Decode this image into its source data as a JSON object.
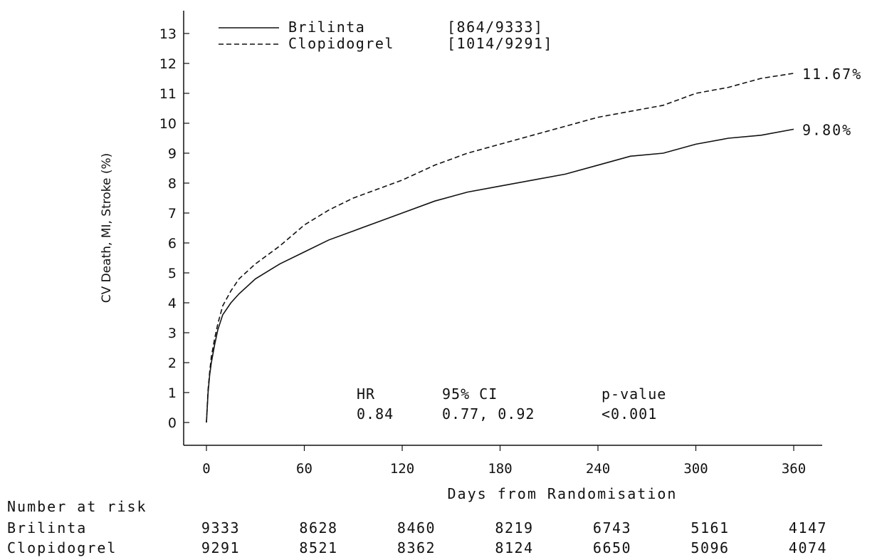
{
  "chart_data": {
    "type": "line",
    "xlabel": "Days from Randomisation",
    "ylabel": "CV Death, MI, Stroke (%)",
    "xlim": [
      0,
      360
    ],
    "ylim": [
      0,
      13
    ],
    "x_ticks": [
      0,
      60,
      120,
      180,
      240,
      300,
      360
    ],
    "y_ticks": [
      0,
      1,
      2,
      3,
      4,
      5,
      6,
      7,
      8,
      9,
      10,
      11,
      12,
      13
    ],
    "grid": false,
    "legend_position": "top-left",
    "series": [
      {
        "name": "Brilinta",
        "legend_counts": "[864/9333]",
        "line_style": "solid",
        "end_label": "9.80%",
        "x": [
          0,
          1,
          2,
          3,
          5,
          7,
          10,
          15,
          20,
          30,
          45,
          60,
          75,
          90,
          105,
          120,
          140,
          160,
          180,
          200,
          220,
          240,
          260,
          280,
          300,
          320,
          340,
          360
        ],
        "y": [
          0,
          1.0,
          1.6,
          2.0,
          2.6,
          3.1,
          3.6,
          4.0,
          4.3,
          4.8,
          5.3,
          5.7,
          6.1,
          6.4,
          6.7,
          7.0,
          7.4,
          7.7,
          7.9,
          8.1,
          8.3,
          8.6,
          8.9,
          9.0,
          9.3,
          9.5,
          9.6,
          9.8
        ]
      },
      {
        "name": "Clopidogrel",
        "legend_counts": "[1014/9291]",
        "line_style": "dashed",
        "end_label": "11.67%",
        "x": [
          0,
          1,
          2,
          3,
          5,
          7,
          10,
          15,
          20,
          30,
          45,
          60,
          75,
          90,
          105,
          120,
          140,
          160,
          180,
          200,
          220,
          240,
          260,
          280,
          300,
          320,
          340,
          360
        ],
        "y": [
          0,
          1.1,
          1.7,
          2.2,
          2.8,
          3.3,
          3.9,
          4.4,
          4.8,
          5.3,
          5.9,
          6.6,
          7.1,
          7.5,
          7.8,
          8.1,
          8.6,
          9.0,
          9.3,
          9.6,
          9.9,
          10.2,
          10.4,
          10.6,
          11.0,
          11.2,
          11.5,
          11.67
        ]
      }
    ],
    "annotation": {
      "headers": [
        "HR",
        "95% CI",
        "p-value"
      ],
      "values": [
        "0.84",
        "0.77, 0.92",
        "<0.001"
      ]
    },
    "risk_table": {
      "title": "Number at risk",
      "rows": [
        {
          "label": "Brilinta",
          "values": [
            "9333",
            "8628",
            "8460",
            "8219",
            "6743",
            "5161",
            "4147"
          ]
        },
        {
          "label": "Clopidogrel",
          "values": [
            "9291",
            "8521",
            "8362",
            "8124",
            "6650",
            "5096",
            "4074"
          ]
        }
      ]
    }
  }
}
